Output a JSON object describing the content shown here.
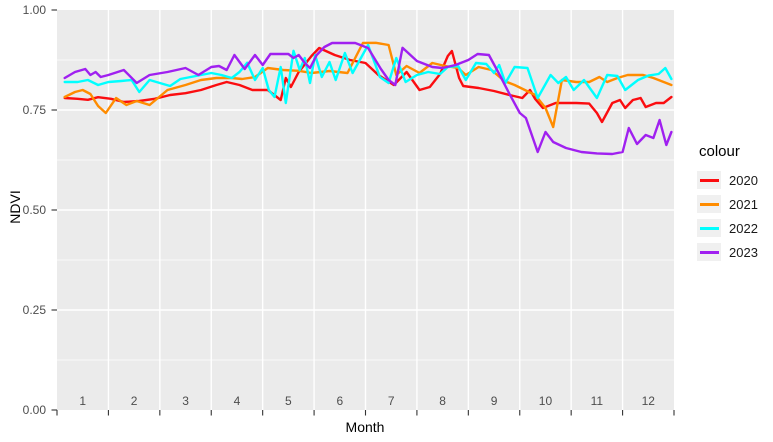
{
  "figure": {
    "background": "#ffffff",
    "panel_background": "#ebebeb",
    "gridline_color": "#ffffff",
    "tick_mark_color": "#333333",
    "tick_label_color": "#4d4d4d",
    "legend_key_background": "#f0f0f0"
  },
  "chart_data": {
    "type": "line",
    "title": "",
    "xlabel": "Month",
    "ylabel": "NDVI",
    "xlim": [
      0.5,
      12.5
    ],
    "ylim": [
      0.0,
      1.0
    ],
    "grid": true,
    "legend_title": "colour",
    "legend_position": "right",
    "y_ticks": [
      {
        "v": 0.0,
        "label": "0.00"
      },
      {
        "v": 0.25,
        "label": "0.25"
      },
      {
        "v": 0.5,
        "label": "0.50"
      },
      {
        "v": 0.75,
        "label": "0.75"
      },
      {
        "v": 1.0,
        "label": "1.00"
      }
    ],
    "y_minor_gridlines": [
      0.125,
      0.375,
      0.625,
      0.875
    ],
    "x_ticks": [
      {
        "v": 1,
        "label": "1"
      },
      {
        "v": 2,
        "label": "2"
      },
      {
        "v": 3,
        "label": "3"
      },
      {
        "v": 4,
        "label": "4"
      },
      {
        "v": 5,
        "label": "5"
      },
      {
        "v": 6,
        "label": "6"
      },
      {
        "v": 7,
        "label": "7"
      },
      {
        "v": 8,
        "label": "8"
      },
      {
        "v": 9,
        "label": "9"
      },
      {
        "v": 10,
        "label": "10"
      },
      {
        "v": 11,
        "label": "11"
      },
      {
        "v": 12,
        "label": "12"
      }
    ],
    "x_gridlines": [
      1.5,
      2.5,
      3.5,
      4.5,
      5.5,
      6.5,
      7.5,
      8.5,
      9.5,
      10.5,
      11.5
    ],
    "x_axis_tick_marks": [
      0.5,
      1.5,
      2.5,
      3.5,
      4.5,
      5.5,
      6.5,
      7.5,
      8.5,
      9.5,
      10.5,
      11.5,
      12.5
    ],
    "series": [
      {
        "name": "2020",
        "color": "#fb0d10",
        "points": [
          [
            0.65,
            0.78
          ],
          [
            0.9,
            0.778
          ],
          [
            1.1,
            0.7755
          ],
          [
            1.3,
            0.782
          ],
          [
            1.55,
            0.778
          ],
          [
            1.8,
            0.77
          ],
          [
            2.1,
            0.7725
          ],
          [
            2.4,
            0.778
          ],
          [
            2.7,
            0.7875
          ],
          [
            3.0,
            0.792
          ],
          [
            3.3,
            0.8
          ],
          [
            3.6,
            0.8125
          ],
          [
            3.8,
            0.82
          ],
          [
            4.05,
            0.8125
          ],
          [
            4.3,
            0.8
          ],
          [
            4.6,
            0.8
          ],
          [
            4.85,
            0.775
          ],
          [
            4.95,
            0.83
          ],
          [
            5.05,
            0.8075
          ],
          [
            5.2,
            0.845
          ],
          [
            5.45,
            0.885
          ],
          [
            5.6,
            0.905
          ],
          [
            5.9,
            0.8875
          ],
          [
            6.2,
            0.875
          ],
          [
            6.5,
            0.8675
          ],
          [
            6.75,
            0.8375
          ],
          [
            7.05,
            0.8125
          ],
          [
            7.3,
            0.845
          ],
          [
            7.55,
            0.8
          ],
          [
            7.75,
            0.8075
          ],
          [
            7.95,
            0.84
          ],
          [
            8.1,
            0.885
          ],
          [
            8.18,
            0.8975
          ],
          [
            8.32,
            0.83
          ],
          [
            8.4,
            0.81
          ],
          [
            8.7,
            0.805
          ],
          [
            9.0,
            0.7975
          ],
          [
            9.3,
            0.7875
          ],
          [
            9.55,
            0.78
          ],
          [
            9.7,
            0.8
          ],
          [
            9.8,
            0.7775
          ],
          [
            9.95,
            0.755
          ],
          [
            10.2,
            0.7675
          ],
          [
            10.6,
            0.7675
          ],
          [
            10.85,
            0.766
          ],
          [
            11.0,
            0.7425
          ],
          [
            11.1,
            0.72
          ],
          [
            11.3,
            0.7675
          ],
          [
            11.45,
            0.775
          ],
          [
            11.55,
            0.755
          ],
          [
            11.7,
            0.775
          ],
          [
            11.85,
            0.78
          ],
          [
            11.95,
            0.7575
          ],
          [
            12.15,
            0.7675
          ],
          [
            12.3,
            0.7675
          ],
          [
            12.45,
            0.7825
          ]
        ]
      },
      {
        "name": "2021",
        "color": "#ff8c00",
        "points": [
          [
            0.65,
            0.7825
          ],
          [
            0.85,
            0.795
          ],
          [
            1.0,
            0.8
          ],
          [
            1.15,
            0.79
          ],
          [
            1.3,
            0.76
          ],
          [
            1.45,
            0.7425
          ],
          [
            1.65,
            0.78
          ],
          [
            1.85,
            0.7625
          ],
          [
            2.05,
            0.7725
          ],
          [
            2.3,
            0.7625
          ],
          [
            2.65,
            0.8
          ],
          [
            3.0,
            0.8125
          ],
          [
            3.3,
            0.825
          ],
          [
            3.6,
            0.83
          ],
          [
            3.9,
            0.83
          ],
          [
            4.1,
            0.8275
          ],
          [
            4.35,
            0.8325
          ],
          [
            4.6,
            0.855
          ],
          [
            4.9,
            0.85
          ],
          [
            5.2,
            0.848
          ],
          [
            5.45,
            0.8425
          ],
          [
            5.8,
            0.8475
          ],
          [
            6.15,
            0.8425
          ],
          [
            6.45,
            0.9175
          ],
          [
            6.7,
            0.918
          ],
          [
            6.95,
            0.9125
          ],
          [
            7.1,
            0.8375
          ],
          [
            7.3,
            0.86
          ],
          [
            7.55,
            0.8425
          ],
          [
            7.8,
            0.8675
          ],
          [
            8.05,
            0.86
          ],
          [
            8.3,
            0.855
          ],
          [
            8.45,
            0.8375
          ],
          [
            8.7,
            0.8575
          ],
          [
            8.95,
            0.85
          ],
          [
            9.2,
            0.8225
          ],
          [
            9.4,
            0.8125
          ],
          [
            9.6,
            0.8
          ],
          [
            9.8,
            0.7875
          ],
          [
            10.0,
            0.755
          ],
          [
            10.15,
            0.7075
          ],
          [
            10.32,
            0.825
          ],
          [
            10.6,
            0.82
          ],
          [
            10.85,
            0.82
          ],
          [
            11.05,
            0.8325
          ],
          [
            11.2,
            0.82
          ],
          [
            11.4,
            0.83
          ],
          [
            11.6,
            0.8375
          ],
          [
            11.9,
            0.8375
          ],
          [
            12.1,
            0.83
          ],
          [
            12.3,
            0.82
          ],
          [
            12.45,
            0.8125
          ]
        ]
      },
      {
        "name": "2022",
        "color": "#00ffff",
        "points": [
          [
            0.65,
            0.82
          ],
          [
            0.9,
            0.82
          ],
          [
            1.1,
            0.825
          ],
          [
            1.3,
            0.8125
          ],
          [
            1.5,
            0.82
          ],
          [
            1.75,
            0.8225
          ],
          [
            1.95,
            0.825
          ],
          [
            2.1,
            0.795
          ],
          [
            2.3,
            0.825
          ],
          [
            2.5,
            0.8175
          ],
          [
            2.7,
            0.81
          ],
          [
            2.9,
            0.8275
          ],
          [
            3.2,
            0.835
          ],
          [
            3.5,
            0.8425
          ],
          [
            3.7,
            0.8375
          ],
          [
            3.9,
            0.83
          ],
          [
            4.05,
            0.845
          ],
          [
            4.2,
            0.868
          ],
          [
            4.35,
            0.825
          ],
          [
            4.5,
            0.855
          ],
          [
            4.62,
            0.8
          ],
          [
            4.73,
            0.7825
          ],
          [
            4.85,
            0.8575
          ],
          [
            4.95,
            0.7675
          ],
          [
            5.1,
            0.898
          ],
          [
            5.22,
            0.85
          ],
          [
            5.32,
            0.88
          ],
          [
            5.42,
            0.8175
          ],
          [
            5.52,
            0.8875
          ],
          [
            5.65,
            0.8325
          ],
          [
            5.8,
            0.87
          ],
          [
            5.92,
            0.825
          ],
          [
            6.1,
            0.8925
          ],
          [
            6.25,
            0.8425
          ],
          [
            6.55,
            0.9125
          ],
          [
            6.78,
            0.8325
          ],
          [
            6.95,
            0.8175
          ],
          [
            7.1,
            0.88
          ],
          [
            7.28,
            0.82
          ],
          [
            7.5,
            0.8375
          ],
          [
            7.72,
            0.845
          ],
          [
            7.95,
            0.84
          ],
          [
            8.1,
            0.8575
          ],
          [
            8.3,
            0.86
          ],
          [
            8.45,
            0.825
          ],
          [
            8.65,
            0.8675
          ],
          [
            8.85,
            0.865
          ],
          [
            9.0,
            0.8425
          ],
          [
            9.1,
            0.8625
          ],
          [
            9.22,
            0.8175
          ],
          [
            9.4,
            0.8575
          ],
          [
            9.65,
            0.855
          ],
          [
            9.85,
            0.78
          ],
          [
            10.1,
            0.8375
          ],
          [
            10.25,
            0.8175
          ],
          [
            10.4,
            0.8325
          ],
          [
            10.55,
            0.8
          ],
          [
            10.75,
            0.825
          ],
          [
            11.0,
            0.78
          ],
          [
            11.2,
            0.8375
          ],
          [
            11.4,
            0.835
          ],
          [
            11.55,
            0.8
          ],
          [
            11.8,
            0.825
          ],
          [
            12.0,
            0.836
          ],
          [
            12.2,
            0.84
          ],
          [
            12.33,
            0.855
          ],
          [
            12.45,
            0.8275
          ]
        ]
      },
      {
        "name": "2023",
        "color": "#a020f0",
        "points": [
          [
            0.65,
            0.83
          ],
          [
            0.85,
            0.845
          ],
          [
            1.05,
            0.8525
          ],
          [
            1.15,
            0.8375
          ],
          [
            1.25,
            0.845
          ],
          [
            1.35,
            0.8325
          ],
          [
            1.5,
            0.8375
          ],
          [
            1.8,
            0.85
          ],
          [
            2.05,
            0.8175
          ],
          [
            2.3,
            0.8375
          ],
          [
            2.65,
            0.845
          ],
          [
            3.0,
            0.855
          ],
          [
            3.25,
            0.8375
          ],
          [
            3.5,
            0.8575
          ],
          [
            3.65,
            0.86
          ],
          [
            3.8,
            0.85
          ],
          [
            3.95,
            0.8875
          ],
          [
            4.15,
            0.8525
          ],
          [
            4.35,
            0.8875
          ],
          [
            4.5,
            0.8625
          ],
          [
            4.65,
            0.89
          ],
          [
            5.0,
            0.89
          ],
          [
            5.1,
            0.88
          ],
          [
            5.2,
            0.8875
          ],
          [
            5.32,
            0.8675
          ],
          [
            5.42,
            0.855
          ],
          [
            5.55,
            0.8875
          ],
          [
            5.7,
            0.9075
          ],
          [
            5.85,
            0.9175
          ],
          [
            6.3,
            0.9175
          ],
          [
            6.55,
            0.905
          ],
          [
            6.8,
            0.8525
          ],
          [
            6.95,
            0.825
          ],
          [
            7.08,
            0.8125
          ],
          [
            7.22,
            0.9055
          ],
          [
            7.5,
            0.8725
          ],
          [
            7.8,
            0.8575
          ],
          [
            8.0,
            0.855
          ],
          [
            8.25,
            0.8625
          ],
          [
            8.5,
            0.875
          ],
          [
            8.68,
            0.89
          ],
          [
            8.9,
            0.8875
          ],
          [
            9.1,
            0.84
          ],
          [
            9.3,
            0.79
          ],
          [
            9.5,
            0.7425
          ],
          [
            9.62,
            0.73
          ],
          [
            9.85,
            0.645
          ],
          [
            10.0,
            0.695
          ],
          [
            10.15,
            0.67
          ],
          [
            10.4,
            0.655
          ],
          [
            10.7,
            0.645
          ],
          [
            11.0,
            0.6415
          ],
          [
            11.3,
            0.64
          ],
          [
            11.5,
            0.645
          ],
          [
            11.62,
            0.705
          ],
          [
            11.78,
            0.665
          ],
          [
            11.95,
            0.6875
          ],
          [
            12.1,
            0.68
          ],
          [
            12.22,
            0.725
          ],
          [
            12.35,
            0.6625
          ],
          [
            12.45,
            0.695
          ]
        ]
      }
    ]
  }
}
